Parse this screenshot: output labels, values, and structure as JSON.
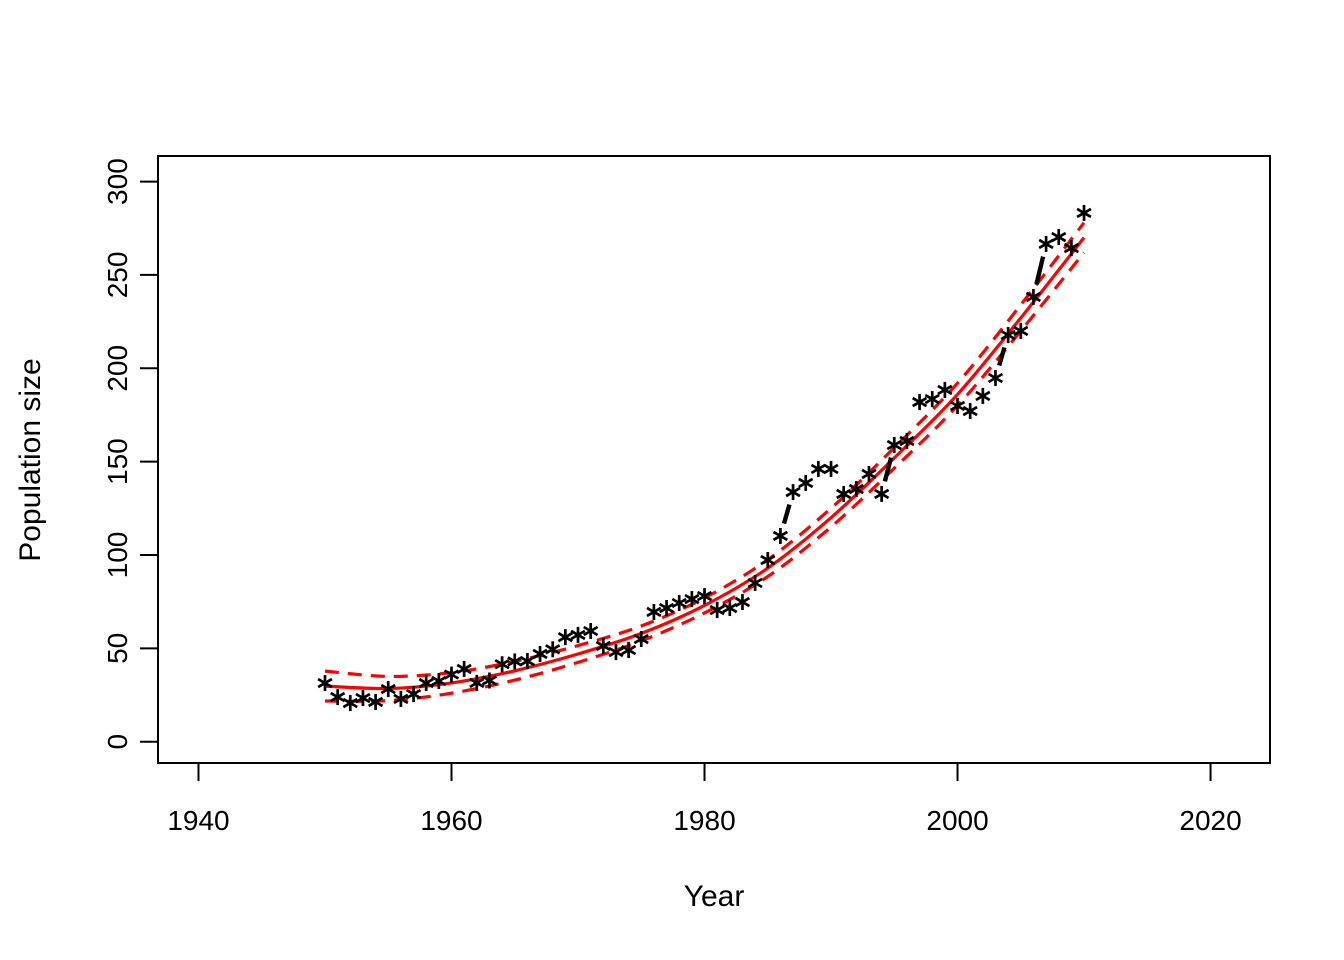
{
  "figure": {
    "xlabel": "Year",
    "ylabel": "Population size"
  },
  "chart_data": {
    "type": "scatter",
    "title": "",
    "xlabel": "Year",
    "ylabel": "Population size",
    "x_ticks": [
      "1940",
      "1960",
      "1980",
      "2000",
      "2020"
    ],
    "x_tick_values": [
      1940,
      1960,
      1980,
      2000,
      2020
    ],
    "y_ticks": [
      "0",
      "50",
      "100",
      "150",
      "200",
      "250",
      "300"
    ],
    "y_tick_values": [
      0,
      50,
      100,
      150,
      200,
      250,
      300
    ],
    "xlim": [
      1936.8,
      2024.7
    ],
    "ylim": [
      -11.4,
      313.7
    ],
    "grid": false,
    "legend_position": "none",
    "colors": {
      "points": "#000000",
      "fit_line": "#ff0000",
      "confidence_band": "#ff0000",
      "axes": "#000000"
    },
    "series": [
      {
        "name": "observed-population",
        "type": "points",
        "symbol": "asterisk",
        "color": "#000000",
        "connector": "dashed-segments-between-distant-points",
        "x": [
          1950,
          1951,
          1952,
          1953,
          1954,
          1955,
          1956,
          1957,
          1958,
          1959,
          1960,
          1961,
          1962,
          1963,
          1964,
          1965,
          1966,
          1967,
          1968,
          1969,
          1970,
          1971,
          1972,
          1973,
          1974,
          1975,
          1976,
          1977,
          1978,
          1979,
          1980,
          1981,
          1982,
          1983,
          1984,
          1985,
          1986,
          1987,
          1988,
          1989,
          1990,
          1991,
          1992,
          1993,
          1994,
          1995,
          1996,
          1997,
          1998,
          1999,
          2000,
          2001,
          2002,
          2003,
          2004,
          2005,
          2006,
          2007,
          2008,
          2009,
          2010
        ],
        "y": [
          31.4,
          23.9,
          20.7,
          23.4,
          21.3,
          28.2,
          22.9,
          25.5,
          31.4,
          32.5,
          36.0,
          39.0,
          31.5,
          32.8,
          41.5,
          43.0,
          43.2,
          47.0,
          49.5,
          56.0,
          57.2,
          59.3,
          51.3,
          48.0,
          49.1,
          55.0,
          69.5,
          71.6,
          74.3,
          76.4,
          78.0,
          70.5,
          71.6,
          74.8,
          85.0,
          97.3,
          110.2,
          133.7,
          138.6,
          146.1,
          146.1,
          132.7,
          135.3,
          143.4,
          132.7,
          158.9,
          161.1,
          181.9,
          183.5,
          188.4,
          179.8,
          177.1,
          185.2,
          194.8,
          217.8,
          220.0,
          238.2,
          266.6,
          270.3,
          264.4,
          283.2
        ]
      },
      {
        "name": "fitted-curve",
        "type": "line",
        "style": "solid",
        "color": "#ff0000",
        "x": [
          1950,
          1955,
          1960,
          1965,
          1970,
          1975,
          1980,
          1985,
          1990,
          1995,
          2000,
          2005,
          2010
        ],
        "y": [
          29.8,
          28.5,
          31.5,
          38.0,
          47.0,
          58.0,
          73.0,
          93.0,
          120.0,
          152.0,
          186.0,
          227.0,
          270.0
        ]
      },
      {
        "name": "confidence-upper",
        "type": "line",
        "style": "dashed",
        "color": "#ff0000",
        "x": [
          1950,
          1955,
          1960,
          1965,
          1970,
          1975,
          1980,
          1985,
          1990,
          1995,
          2000,
          2005,
          2010
        ],
        "y": [
          37.8,
          35.0,
          37.0,
          43.0,
          51.5,
          62.0,
          77.0,
          97.5,
          125.0,
          157.5,
          192.0,
          234.0,
          278.0
        ]
      },
      {
        "name": "confidence-lower",
        "type": "line",
        "style": "dashed",
        "color": "#ff0000",
        "x": [
          1950,
          1955,
          1960,
          1965,
          1970,
          1975,
          1980,
          1985,
          1990,
          1995,
          2000,
          2005,
          2010
        ],
        "y": [
          21.8,
          22.0,
          26.0,
          33.0,
          42.5,
          54.0,
          69.0,
          88.5,
          115.0,
          146.5,
          180.0,
          220.0,
          262.0
        ]
      }
    ]
  }
}
